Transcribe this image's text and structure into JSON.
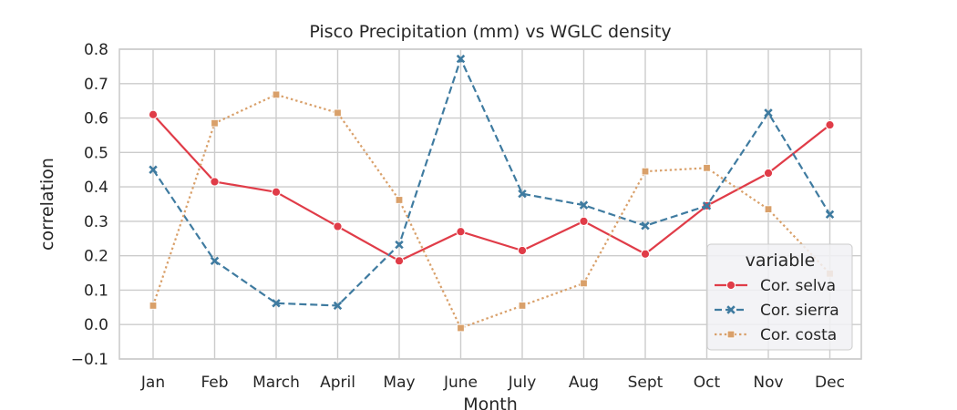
{
  "chart_data": {
    "type": "line",
    "title": "Pisco Precipitation (mm) vs  WGLC density",
    "xlabel": "Month",
    "ylabel": "correlation",
    "categories": [
      "Jan",
      "Feb",
      "March",
      "April",
      "May",
      "June",
      "July",
      "Aug",
      "Sept",
      "Oct",
      "Nov",
      "Dec"
    ],
    "ylim": [
      -0.1,
      0.8
    ],
    "yticks": [
      "−0.1",
      "0.0",
      "0.1",
      "0.2",
      "0.3",
      "0.4",
      "0.5",
      "0.6",
      "0.7",
      "0.8"
    ],
    "ytick_values": [
      -0.1,
      0.0,
      0.1,
      0.2,
      0.3,
      0.4,
      0.5,
      0.6,
      0.7,
      0.8
    ],
    "grid": true,
    "legend": {
      "title": "variable",
      "placement": "lower-right"
    },
    "series": [
      {
        "name": "Cor. selva",
        "color": "#e03c48",
        "marker": "circle",
        "line_style": "solid",
        "values": [
          0.61,
          0.415,
          0.385,
          0.285,
          0.185,
          0.27,
          0.215,
          0.3,
          0.205,
          0.345,
          0.44,
          0.58
        ]
      },
      {
        "name": "Cor. sierra",
        "color": "#3f7ba0",
        "marker": "x",
        "line_style": "dashed",
        "values": [
          0.45,
          0.185,
          0.062,
          0.055,
          0.232,
          0.772,
          0.38,
          0.347,
          0.287,
          0.345,
          0.615,
          0.32
        ]
      },
      {
        "name": "Cor. costa",
        "color": "#d9a06a",
        "marker": "square",
        "line_style": "dotted",
        "values": [
          0.055,
          0.585,
          0.668,
          0.615,
          0.362,
          -0.01,
          0.055,
          0.12,
          0.445,
          0.455,
          0.335,
          0.148
        ]
      }
    ]
  }
}
